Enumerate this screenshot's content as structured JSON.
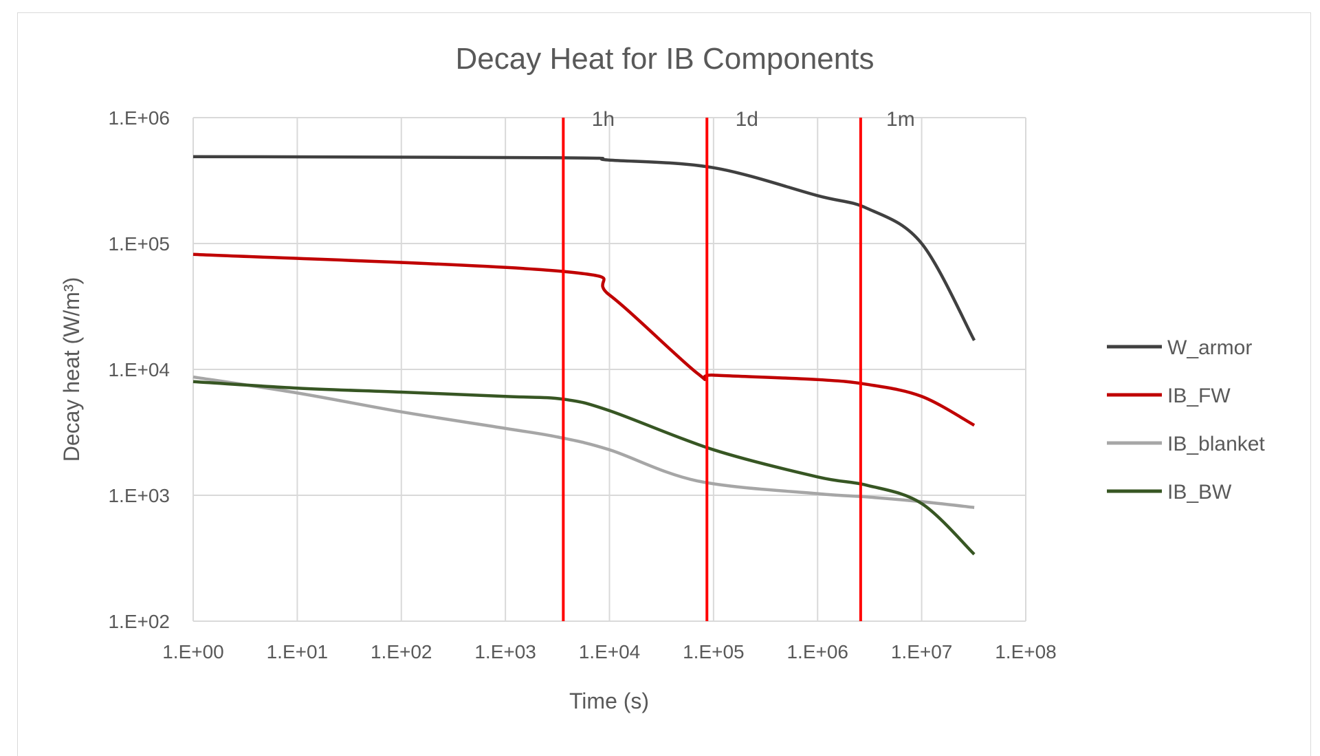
{
  "chart_data": {
    "type": "line",
    "title": "Decay Heat for IB Components",
    "xlabel": "Time (s)",
    "ylabel": "Decay heat (W/m³)",
    "xscale": "log",
    "yscale": "log",
    "xlim": [
      1,
      100000000
    ],
    "ylim": [
      100,
      1000000
    ],
    "grid": true,
    "legend_position": "right",
    "x_tick_labels": [
      "1.E+00",
      "1.E+01",
      "1.E+02",
      "1.E+03",
      "1.E+04",
      "1.E+05",
      "1.E+06",
      "1.E+07",
      "1.E+08"
    ],
    "y_tick_labels": [
      "1.E+02",
      "1.E+03",
      "1.E+04",
      "1.E+05",
      "1.E+06"
    ],
    "markers": [
      {
        "label": "1h",
        "x": 3600,
        "color": "#ff0000"
      },
      {
        "label": "1d",
        "x": 86400,
        "color": "#ff0000"
      },
      {
        "label": "1m",
        "x": 2592000,
        "color": "#ff0000"
      }
    ],
    "series": [
      {
        "name": "W_armor",
        "color": "#404040",
        "points": [
          [
            1,
            490000
          ],
          [
            3600,
            480000
          ],
          [
            10000,
            460000
          ],
          [
            100000,
            400000
          ],
          [
            1000000,
            240000
          ],
          [
            3000000,
            190000
          ],
          [
            10000000,
            100000
          ],
          [
            32000000,
            17000
          ]
        ]
      },
      {
        "name": "IB_FW",
        "color": "#c00000",
        "points": [
          [
            1,
            82000
          ],
          [
            3600,
            60000
          ],
          [
            10000,
            39000
          ],
          [
            70000,
            9300
          ],
          [
            100000,
            9000
          ],
          [
            1000000,
            8300
          ],
          [
            3000000,
            7600
          ],
          [
            10000000,
            6100
          ],
          [
            32000000,
            3600
          ]
        ]
      },
      {
        "name": "IB_blanket",
        "color": "#a6a6a6",
        "points": [
          [
            1,
            8700
          ],
          [
            10,
            6500
          ],
          [
            100,
            4600
          ],
          [
            1000,
            3400
          ],
          [
            3200,
            2900
          ],
          [
            10000,
            2300
          ],
          [
            70000,
            1300
          ],
          [
            1000000,
            1030
          ],
          [
            3000000,
            970
          ],
          [
            10000000,
            890
          ],
          [
            32000000,
            800
          ]
        ]
      },
      {
        "name": "IB_BW",
        "color": "#375623",
        "points": [
          [
            1,
            8000
          ],
          [
            10,
            7100
          ],
          [
            100,
            6600
          ],
          [
            1000,
            6100
          ],
          [
            3600,
            5800
          ],
          [
            10000,
            4700
          ],
          [
            100000,
            2300
          ],
          [
            1000000,
            1400
          ],
          [
            3000000,
            1200
          ],
          [
            10000000,
            860
          ],
          [
            32000000,
            340
          ]
        ]
      }
    ]
  }
}
